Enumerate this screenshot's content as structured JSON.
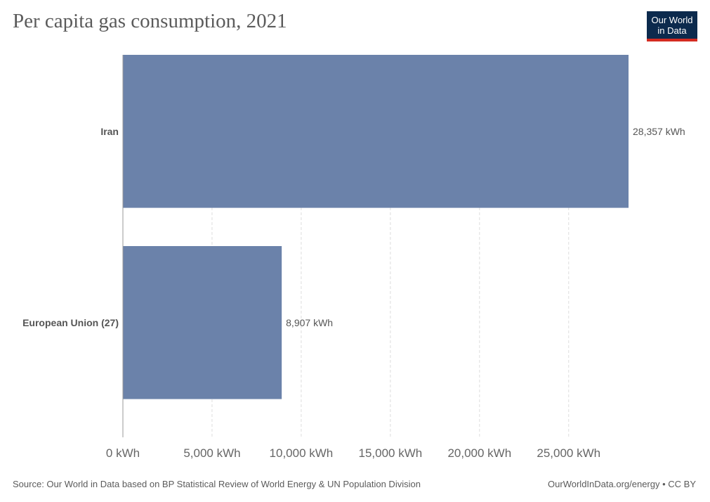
{
  "title": "Per capita gas consumption, 2021",
  "logo": {
    "line1": "Our World",
    "line2": "in Data"
  },
  "footer": {
    "source": "Source: Our World in Data based on BP Statistical Review of World Energy & UN Population Division",
    "credit": "OurWorldInData.org/energy • CC BY"
  },
  "colors": {
    "bar": "#6b82aa",
    "grid": "#dddddd",
    "axis": "#999999",
    "text": "#555555",
    "logo_bg": "#0c2a4d",
    "logo_accent": "#d42b21"
  },
  "chart_data": {
    "type": "bar",
    "orientation": "horizontal",
    "categories": [
      "Iran",
      "European Union (27)"
    ],
    "values": [
      28357,
      8907
    ],
    "value_labels": [
      "28,357 kWh",
      "8,907 kWh"
    ],
    "xlim": [
      0,
      28357
    ],
    "xticks": [
      0,
      5000,
      10000,
      15000,
      20000,
      25000
    ],
    "xtick_labels": [
      "0 kWh",
      "5,000 kWh",
      "10,000 kWh",
      "15,000 kWh",
      "20,000 kWh",
      "25,000 kWh"
    ],
    "grid": true
  }
}
